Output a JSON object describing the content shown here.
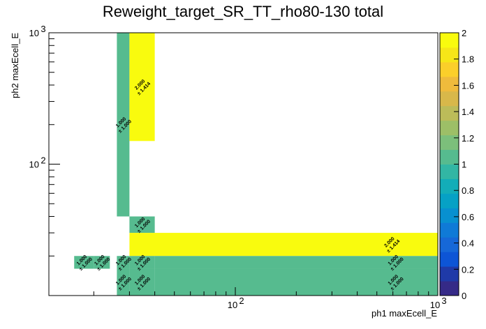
{
  "chart_data": {
    "type": "heatmap",
    "title": "Reweight_target_SR_TT_rho80-130 total",
    "xlabel": "ph1 maxEcell_E",
    "ylabel": "ph2 maxEcell_E",
    "xscale": "log",
    "yscale": "log",
    "xlim": [
      12,
      1000
    ],
    "ylim": [
      10,
      1000
    ],
    "x_ticks": [
      {
        "value": 100,
        "label": "10",
        "sup": "2"
      },
      {
        "value": 1000,
        "label": "10",
        "sup": "3"
      }
    ],
    "y_ticks": [
      {
        "value": 100,
        "label": "10",
        "sup": "2"
      },
      {
        "value": 1000,
        "label": "10",
        "sup": "3"
      }
    ],
    "zlim": [
      0,
      2
    ],
    "z_ticks": [
      "0",
      "0.2",
      "0.4",
      "0.6",
      "0.8",
      "1",
      "1.2",
      "1.4",
      "1.6",
      "1.8",
      "2"
    ],
    "palette": [
      "#352a87",
      "#1f3aa8",
      "#0d55d6",
      "#1668d8",
      "#0f7ad7",
      "#0890d0",
      "#06a1c5",
      "#13adb8",
      "#32b6a4",
      "#56bb8f",
      "#7cbf7b",
      "#9dbf67",
      "#bcbc59",
      "#d8b84a",
      "#efbb3c",
      "#fbcf2a",
      "#f6e618",
      "#f9fb0e"
    ],
    "cells": [
      {
        "x0": 16,
        "x1": 20,
        "y0": 16,
        "y1": 20,
        "value": 1.0,
        "label": "1.000\n± 1.000"
      },
      {
        "x0": 20,
        "x1": 24,
        "y0": 16,
        "y1": 20,
        "value": 1.0,
        "label": "1.000\n± 1.000"
      },
      {
        "x0": 26,
        "x1": 30,
        "y0": 40,
        "y1": 1000,
        "value": 1.0,
        "label": "1.000\n± 1.000"
      },
      {
        "x0": 30,
        "x1": 40,
        "y0": 150,
        "y1": 1000,
        "value": 2.0,
        "label": "2.000\n± 1.414"
      },
      {
        "x0": 30,
        "x1": 40,
        "y0": 30,
        "y1": 40,
        "value": 1.0,
        "label": "1.000\n± 1.000"
      },
      {
        "x0": 30,
        "x1": 1000,
        "y0": 20,
        "y1": 30,
        "value": 2.0,
        "label": "2.000\n± 1.414"
      },
      {
        "x0": 26,
        "x1": 30,
        "y0": 16,
        "y1": 20,
        "value": 1.0,
        "label": "1.000\n± 1.000"
      },
      {
        "x0": 30,
        "x1": 40,
        "y0": 16,
        "y1": 20,
        "value": 1.0,
        "label": "1.000\n± 1.000"
      },
      {
        "x0": 40,
        "x1": 1000,
        "y0": 16,
        "y1": 20,
        "value": 1.0,
        "label": "1.000\n± 1.000"
      },
      {
        "x0": 26,
        "x1": 30,
        "y0": 10,
        "y1": 16,
        "value": 1.0,
        "label": "1.000\n± 1.000"
      },
      {
        "x0": 30,
        "x1": 40,
        "y0": 10,
        "y1": 16,
        "value": 1.0,
        "label": "1.000\n± 1.000"
      },
      {
        "x0": 40,
        "x1": 1000,
        "y0": 10,
        "y1": 16,
        "value": 1.0,
        "label": "1.000\n± 1.000"
      }
    ]
  }
}
